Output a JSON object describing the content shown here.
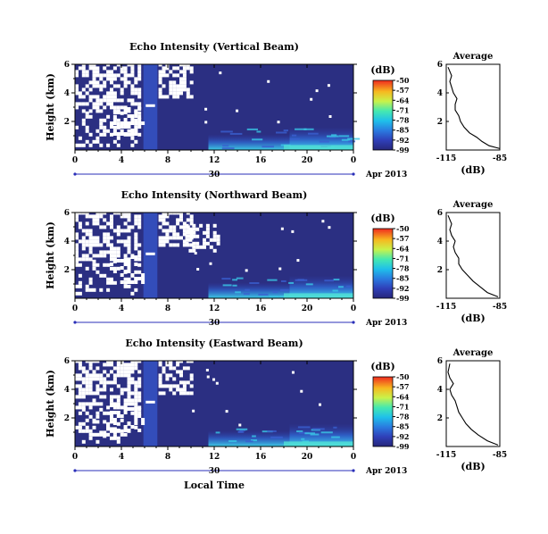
{
  "chart_data": [
    {
      "type": "heatmap",
      "title": "Echo Intensity (Vertical Beam)",
      "ylabel": "Height (km)",
      "x_ticks": [
        "0",
        "4",
        "8",
        "12",
        "16",
        "20",
        "0"
      ],
      "y_ticks": [
        "6",
        "4",
        "2"
      ],
      "date_label": "30",
      "date_suffix": "Apr 2013",
      "xlim": [
        0,
        24
      ],
      "ylim": [
        0,
        6
      ],
      "colorbar": {
        "label": "(dB)",
        "ticks": [
          "-50",
          "-57",
          "-64",
          "-71",
          "-78",
          "-85",
          "-92",
          "-99"
        ],
        "range": [
          -99,
          -50
        ]
      },
      "average_panel": {
        "title": "Average",
        "xlabel": "(dB)",
        "x_ticks": [
          "-115",
          "-85"
        ],
        "y_ticks": [
          "6",
          "4",
          "2"
        ],
        "xlim": [
          -115,
          -85
        ],
        "profile": [
          [
            -85,
            0.1
          ],
          [
            -91,
            0.3
          ],
          [
            -95,
            0.6
          ],
          [
            -98,
            0.9
          ],
          [
            -102,
            1.2
          ],
          [
            -105,
            1.6
          ],
          [
            -107,
            2.0
          ],
          [
            -108,
            2.4
          ],
          [
            -110,
            2.8
          ],
          [
            -110,
            3.2
          ],
          [
            -109,
            3.6
          ],
          [
            -111,
            4.0
          ],
          [
            -112,
            4.4
          ],
          [
            -113,
            4.8
          ],
          [
            -112,
            5.2
          ],
          [
            -114,
            5.8
          ]
        ]
      }
    },
    {
      "type": "heatmap",
      "title": "Echo Intensity (Northward Beam)",
      "ylabel": "Height (km)",
      "x_ticks": [
        "0",
        "4",
        "8",
        "12",
        "16",
        "20",
        "0"
      ],
      "y_ticks": [
        "6",
        "4",
        "2"
      ],
      "date_label": "30",
      "date_suffix": "Apr 2013",
      "xlim": [
        0,
        24
      ],
      "ylim": [
        0,
        6
      ],
      "colorbar": {
        "label": "(dB)",
        "ticks": [
          "-50",
          "-57",
          "-64",
          "-71",
          "-78",
          "-85",
          "-92",
          "-99"
        ],
        "range": [
          -99,
          -50
        ]
      },
      "average_panel": {
        "title": "Average",
        "xlabel": "(dB)",
        "x_ticks": [
          "-115",
          "-85"
        ],
        "y_ticks": [
          "6",
          "4",
          "2"
        ],
        "xlim": [
          -115,
          -85
        ],
        "profile": [
          [
            -86,
            0.1
          ],
          [
            -92,
            0.4
          ],
          [
            -96,
            0.8
          ],
          [
            -100,
            1.2
          ],
          [
            -103,
            1.6
          ],
          [
            -106,
            2.0
          ],
          [
            -108,
            2.4
          ],
          [
            -108,
            2.8
          ],
          [
            -110,
            3.2
          ],
          [
            -111,
            3.6
          ],
          [
            -110,
            4.0
          ],
          [
            -112,
            4.4
          ],
          [
            -113,
            4.8
          ],
          [
            -112,
            5.2
          ],
          [
            -114,
            5.8
          ]
        ]
      }
    },
    {
      "type": "heatmap",
      "title": "Echo Intensity (Eastward Beam)",
      "ylabel": "Height (km)",
      "x_ticks": [
        "0",
        "4",
        "8",
        "12",
        "16",
        "20",
        "0"
      ],
      "y_ticks": [
        "6",
        "4",
        "2"
      ],
      "date_label": "30",
      "date_suffix": "Apr 2013",
      "xlabel": "Local Time",
      "xlim": [
        0,
        24
      ],
      "ylim": [
        0,
        6
      ],
      "colorbar": {
        "label": "(dB)",
        "ticks": [
          "-50",
          "-57",
          "-64",
          "-71",
          "-78",
          "-85",
          "-92",
          "-99"
        ],
        "range": [
          -99,
          -50
        ]
      },
      "average_panel": {
        "title": "Average",
        "xlabel": "(dB)",
        "x_ticks": [
          "-115",
          "-85"
        ],
        "y_ticks": [
          "6",
          "4",
          "2"
        ],
        "xlim": [
          -115,
          -85
        ],
        "profile": [
          [
            -86,
            0.1
          ],
          [
            -92,
            0.4
          ],
          [
            -97,
            0.8
          ],
          [
            -101,
            1.2
          ],
          [
            -104,
            1.6
          ],
          [
            -106,
            2.0
          ],
          [
            -108,
            2.4
          ],
          [
            -109,
            2.8
          ],
          [
            -110,
            3.2
          ],
          [
            -112,
            3.6
          ],
          [
            -113,
            4.0
          ],
          [
            -111,
            4.4
          ],
          [
            -113,
            4.8
          ],
          [
            -114,
            5.2
          ],
          [
            -113,
            5.8
          ]
        ]
      }
    }
  ]
}
